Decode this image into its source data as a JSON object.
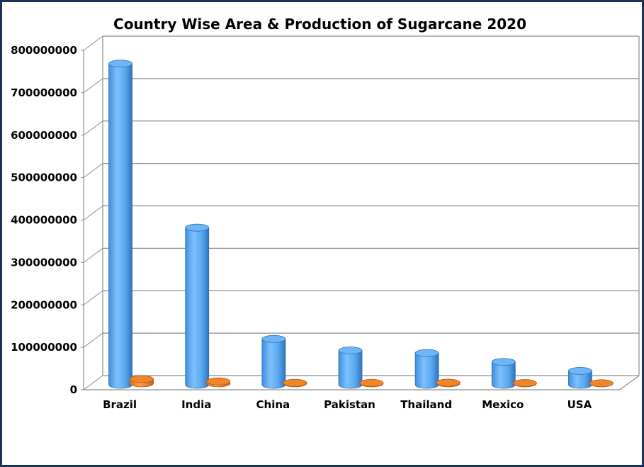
{
  "chart_data": {
    "type": "bar",
    "title": "Country Wise Area & Production of Sugarcane 2020",
    "xlabel": "",
    "ylabel": "",
    "categories": [
      "Brazil",
      "India",
      "China",
      "Pakistan",
      "Thailand",
      "Mexico",
      "USA"
    ],
    "series": [
      {
        "values": [
          757000000,
          370500000,
          108100000,
          81000000,
          74900000,
          53900000,
          32800000
        ],
        "color": "#5aa8ee"
      },
      {
        "values": [
          10000000,
          4700000,
          1400000,
          1200000,
          1800000,
          800000,
          400000
        ],
        "color": "#f08a2e"
      }
    ],
    "ylim": [
      0,
      800000000
    ],
    "yticks": [
      "0",
      "100000000",
      "200000000",
      "300000000",
      "400000000",
      "500000000",
      "600000000",
      "700000000",
      "800000000"
    ],
    "grid": true,
    "legend": "none",
    "style": "3d-cylinder"
  }
}
